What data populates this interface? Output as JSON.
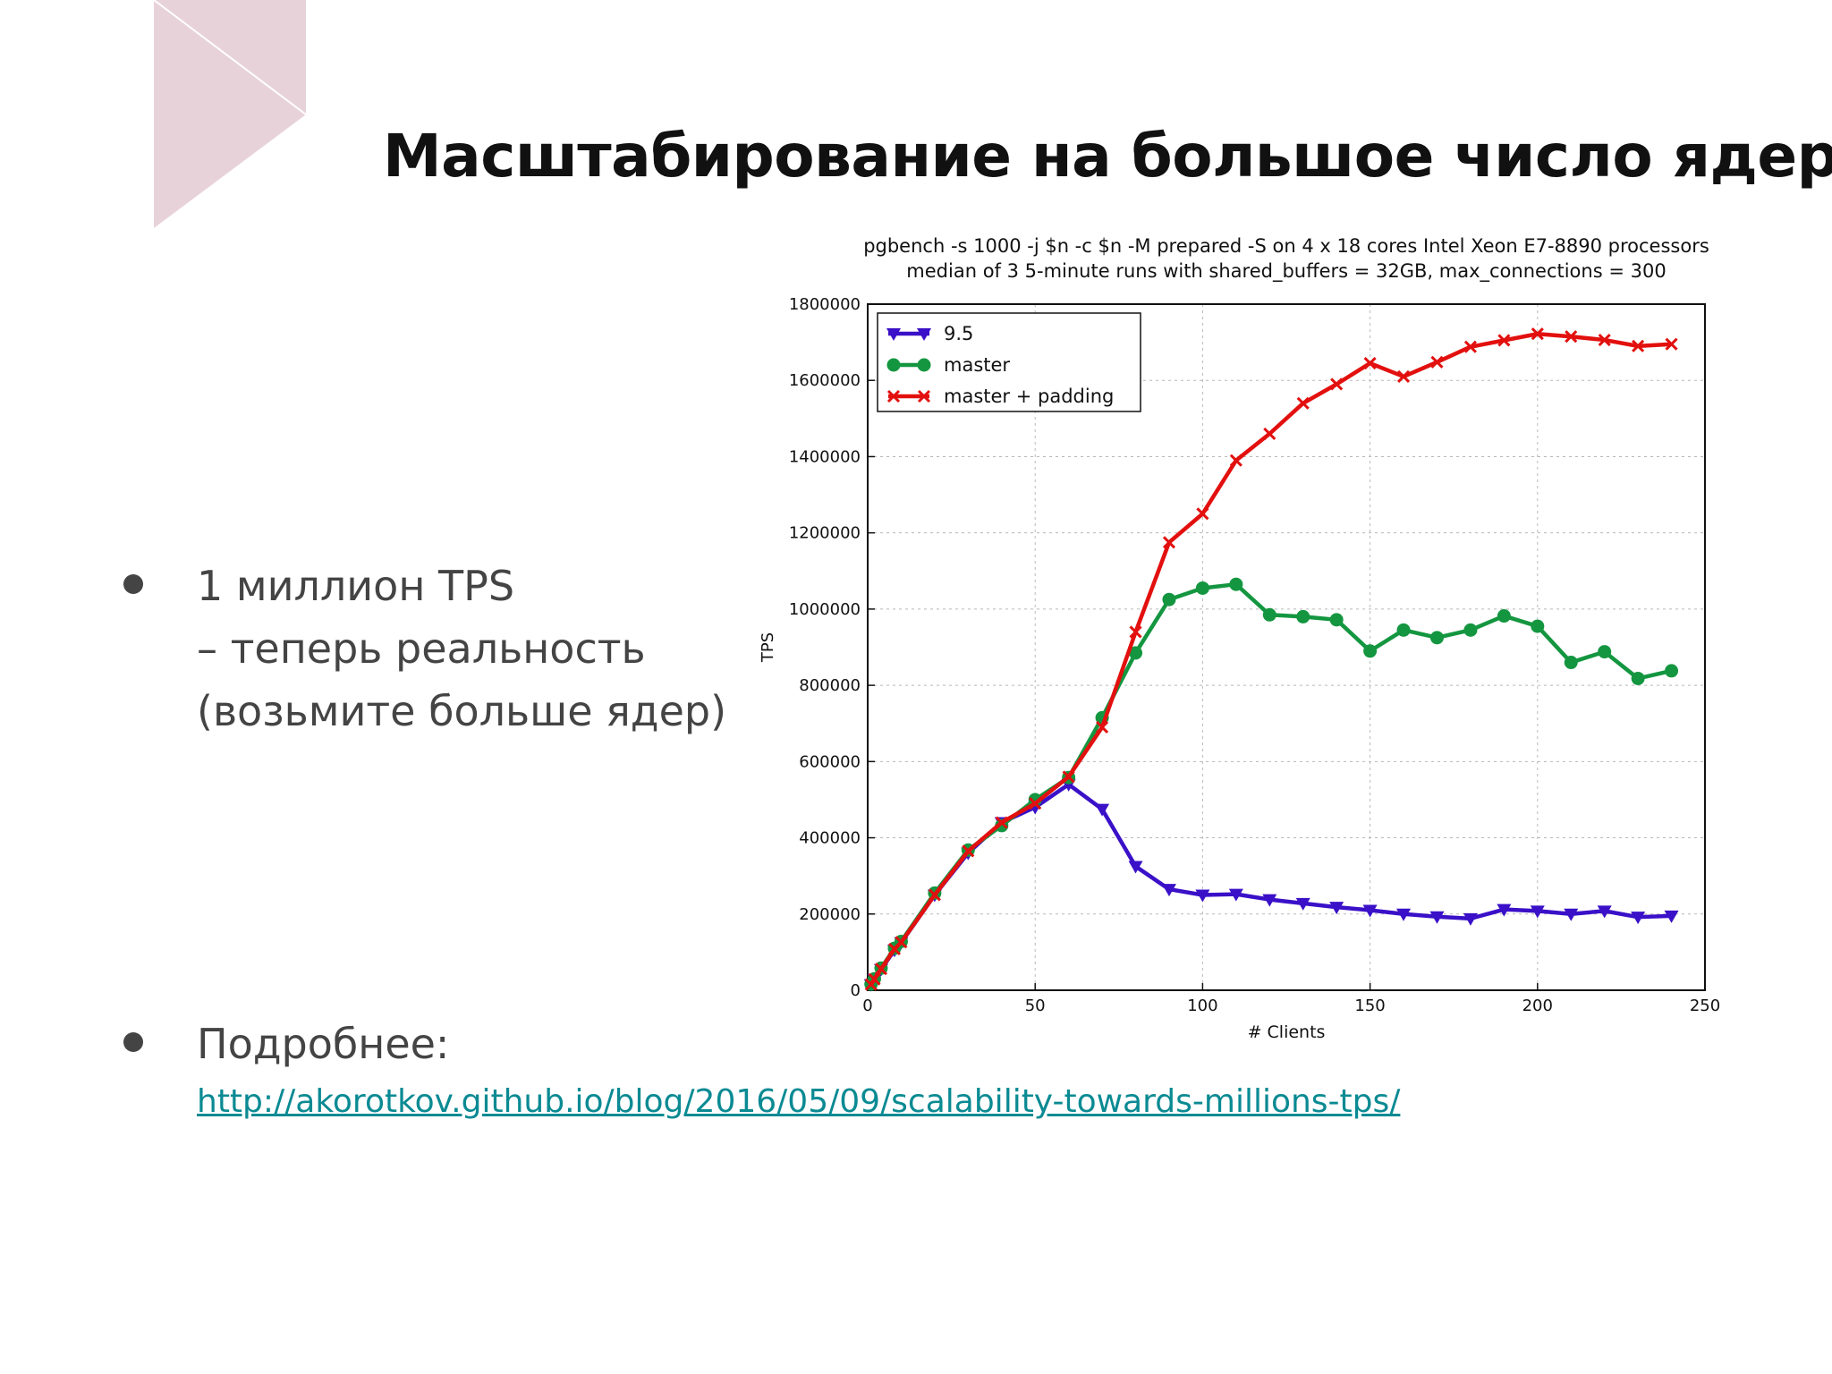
{
  "slide": {
    "title": "Масштабирование на большое число ядер",
    "accent_color": "#e8d2da",
    "bullets": [
      {
        "lines": [
          "1 миллион TPS",
          "– теперь реальность",
          "(возьмите больше ядер)"
        ]
      },
      {
        "lines": [
          "Подробнее:"
        ],
        "link": "http://akorotkov.github.io/blog/2016/05/09/scalability-towards-millions-tps/"
      }
    ]
  },
  "chart_data": {
    "type": "line",
    "title_lines": [
      "pgbench -s 1000 -j $n -c $n -M prepared -S on 4 x 18 cores Intel Xeon E7-8890 processors",
      "median of 3 5-minute runs with shared_buffers = 32GB, max_connections = 300"
    ],
    "xlabel": "# Clients",
    "ylabel": "TPS",
    "xlim": [
      0,
      250
    ],
    "ylim": [
      0,
      1800000
    ],
    "xticks": [
      0,
      50,
      100,
      150,
      200,
      250
    ],
    "yticks": [
      0,
      200000,
      400000,
      600000,
      800000,
      1000000,
      1200000,
      1400000,
      1600000,
      1800000
    ],
    "grid": true,
    "legend_position": "top-left",
    "x": [
      1,
      2,
      4,
      8,
      10,
      20,
      30,
      40,
      50,
      60,
      70,
      80,
      90,
      100,
      110,
      120,
      130,
      140,
      150,
      160,
      170,
      180,
      190,
      200,
      210,
      220,
      230,
      240
    ],
    "series": [
      {
        "name": "9.5",
        "color": "#3a10c8",
        "marker": "triangle-down",
        "values": [
          15000,
          28000,
          55000,
          105000,
          125000,
          250000,
          360000,
          440000,
          480000,
          540000,
          475000,
          325000,
          265000,
          250000,
          252000,
          238000,
          228000,
          218000,
          210000,
          200000,
          193000,
          188000,
          212000,
          208000,
          200000,
          208000,
          192000,
          195000
        ]
      },
      {
        "name": "master",
        "color": "#149640",
        "marker": "circle",
        "values": [
          16000,
          30000,
          58000,
          110000,
          128000,
          255000,
          368000,
          432000,
          500000,
          558000,
          715000,
          885000,
          1025000,
          1055000,
          1065000,
          985000,
          980000,
          972000,
          890000,
          945000,
          925000,
          945000,
          982000,
          955000,
          860000,
          888000,
          818000,
          838000
        ]
      },
      {
        "name": "master + padding",
        "color": "#e2100e",
        "marker": "x",
        "values": [
          15000,
          29000,
          56000,
          108000,
          126000,
          250000,
          365000,
          440000,
          490000,
          560000,
          690000,
          940000,
          1175000,
          1250000,
          1390000,
          1460000,
          1540000,
          1590000,
          1645000,
          1610000,
          1648000,
          1688000,
          1705000,
          1722000,
          1715000,
          1706000,
          1690000,
          1695000
        ]
      }
    ]
  }
}
